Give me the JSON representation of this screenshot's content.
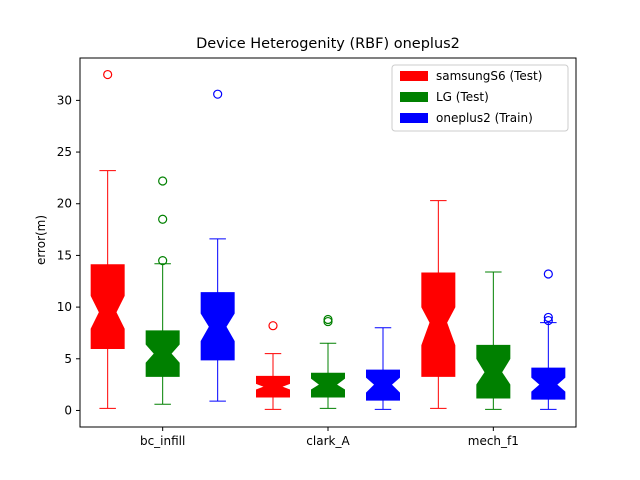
{
  "chart_data": {
    "type": "box",
    "title": "Device Heterogenity (RBF) oneplus2",
    "xlabel": "",
    "ylabel": "error(m)",
    "ylim": [
      -1.6,
      34.1
    ],
    "yticks": [
      0,
      5,
      10,
      15,
      20,
      25,
      30
    ],
    "categories": [
      "bc_infill",
      "clark_A",
      "mech_f1"
    ],
    "legend_position": "top-right",
    "series": [
      {
        "name": "samsungS6 (Test)",
        "color": "#ff0000",
        "boxes": [
          {
            "category": "bc_infill",
            "whisker_low": 0.2,
            "q1": 6.0,
            "median": 9.5,
            "q3": 14.1,
            "whisker_high": 23.2,
            "notch_low": 7.9,
            "notch_high": 11.1,
            "outliers": [
              32.5
            ]
          },
          {
            "category": "clark_A",
            "whisker_low": 0.1,
            "q1": 1.3,
            "median": 2.3,
            "q3": 3.3,
            "whisker_high": 5.5,
            "notch_low": 2.0,
            "notch_high": 2.6,
            "outliers": [
              8.2
            ]
          },
          {
            "category": "mech_f1",
            "whisker_low": 0.2,
            "q1": 3.3,
            "median": 8.5,
            "q3": 13.3,
            "whisker_high": 20.3,
            "notch_low": 6.3,
            "notch_high": 10.0,
            "outliers": []
          }
        ]
      },
      {
        "name": "LG (Test)",
        "color": "#008000",
        "boxes": [
          {
            "category": "bc_infill",
            "whisker_low": 0.6,
            "q1": 3.3,
            "median": 5.5,
            "q3": 7.7,
            "whisker_high": 14.2,
            "notch_low": 4.6,
            "notch_high": 6.4,
            "outliers": [
              14.5,
              18.5,
              22.2
            ]
          },
          {
            "category": "clark_A",
            "whisker_low": 0.2,
            "q1": 1.3,
            "median": 2.5,
            "q3": 3.6,
            "whisker_high": 6.5,
            "notch_low": 2.0,
            "notch_high": 3.1,
            "outliers": [
              8.6,
              8.8
            ]
          },
          {
            "category": "mech_f1",
            "whisker_low": 0.1,
            "q1": 1.2,
            "median": 3.7,
            "q3": 6.3,
            "whisker_high": 13.4,
            "notch_low": 2.5,
            "notch_high": 5.0,
            "outliers": []
          }
        ]
      },
      {
        "name": "oneplus2 (Train)",
        "color": "#0000ff",
        "boxes": [
          {
            "category": "bc_infill",
            "whisker_low": 0.9,
            "q1": 4.9,
            "median": 8.1,
            "q3": 11.4,
            "whisker_high": 16.6,
            "notch_low": 6.7,
            "notch_high": 9.4,
            "outliers": [
              30.6
            ]
          },
          {
            "category": "clark_A",
            "whisker_low": 0.1,
            "q1": 1.0,
            "median": 2.5,
            "q3": 3.9,
            "whisker_high": 8.0,
            "notch_low": 1.7,
            "notch_high": 3.2,
            "outliers": []
          },
          {
            "category": "mech_f1",
            "whisker_low": 0.1,
            "q1": 1.1,
            "median": 2.5,
            "q3": 4.1,
            "whisker_high": 8.5,
            "notch_low": 1.8,
            "notch_high": 3.2,
            "outliers": [
              8.7,
              9.0,
              13.2
            ]
          }
        ]
      }
    ]
  }
}
